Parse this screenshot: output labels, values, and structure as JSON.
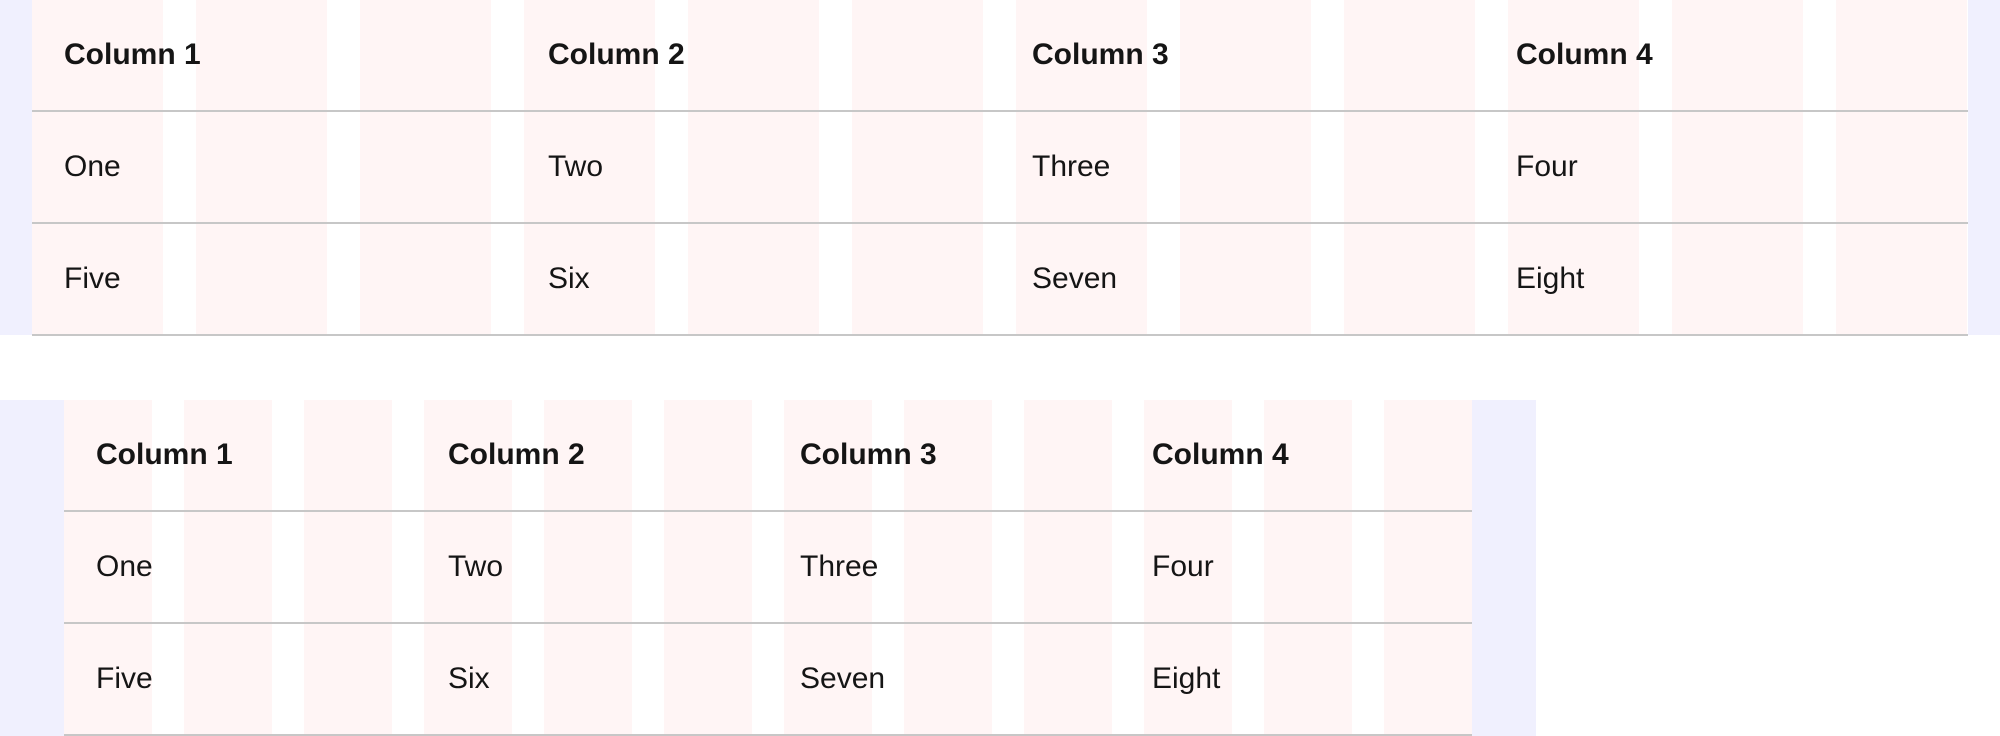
{
  "colors": {
    "grid_column": "#fff5f5",
    "container": "#f0f0fe",
    "border": "#c7c7c7"
  },
  "tables": [
    {
      "headers": [
        "Column 1",
        "Column 2",
        "Column 3",
        "Column 4"
      ],
      "rows": [
        [
          "One",
          "Two",
          "Three",
          "Four"
        ],
        [
          "Five",
          "Six",
          "Seven",
          "Eight"
        ]
      ]
    },
    {
      "headers": [
        "Column 1",
        "Column 2",
        "Column 3",
        "Column 4"
      ],
      "rows": [
        [
          "One",
          "Two",
          "Three",
          "Four"
        ],
        [
          "Five",
          "Six",
          "Seven",
          "Eight"
        ]
      ]
    }
  ]
}
